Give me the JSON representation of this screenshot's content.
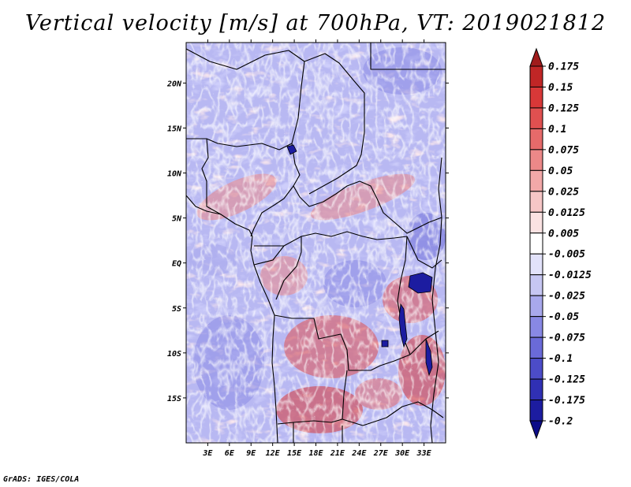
{
  "title": "Vertical velocity [m/s] at 700hPa, VT: 2019021812",
  "footer": "GrADS: IGES/COLA",
  "map": {
    "lon_range": [
      0,
      36
    ],
    "lat_range": [
      -20,
      24.5
    ],
    "lat_ticks": [
      "20N",
      "15N",
      "10N",
      "5N",
      "EQ",
      "5S",
      "10S",
      "15S"
    ],
    "lat_tick_values": [
      20,
      15,
      10,
      5,
      0,
      -5,
      -10,
      -15
    ],
    "lon_ticks": [
      "3E",
      "6E",
      "9E",
      "12E",
      "15E",
      "18E",
      "21E",
      "24E",
      "27E",
      "30E",
      "33E"
    ],
    "lon_tick_values": [
      3,
      6,
      9,
      12,
      15,
      18,
      21,
      24,
      27,
      30,
      33
    ]
  },
  "colorbar": {
    "labels": [
      "0.175",
      "0.15",
      "0.125",
      "0.1",
      "0.075",
      "0.05",
      "0.025",
      "0.0125",
      "0.005",
      "-0.005",
      "-0.0125",
      "-0.025",
      "-0.05",
      "-0.075",
      "-0.1",
      "-0.125",
      "-0.175",
      "-0.2"
    ],
    "colors": [
      "#a01c1c",
      "#c02626",
      "#d83838",
      "#e05050",
      "#e66a6a",
      "#ec8888",
      "#f2a8a8",
      "#f6c6c6",
      "#fae2e2",
      "#ffffff",
      "#e2e2fa",
      "#c6c6f2",
      "#a8a8ec",
      "#8888e4",
      "#6a6ad8",
      "#4c4cc8",
      "#3030b4",
      "#1c1ca0",
      "#0c0c88"
    ]
  }
}
